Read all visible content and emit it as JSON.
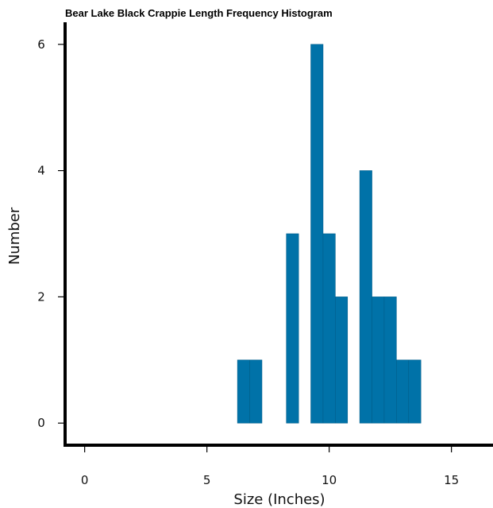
{
  "chart_data": {
    "type": "bar",
    "title": "Bear Lake Black Crappie Length Frequency Histogram",
    "xlabel": "Size (Inches)",
    "ylabel": "Number",
    "xlim": [
      -0.8,
      16.7
    ],
    "ylim": [
      -0.35,
      6.35
    ],
    "x_ticks": [
      0,
      5,
      10,
      15
    ],
    "y_ticks": [
      0,
      2,
      4,
      6
    ],
    "bar_color": "#0072a8",
    "bin_width": 0.5,
    "bars": [
      {
        "x_start": 6.25,
        "x_end": 6.75,
        "count": 1
      },
      {
        "x_start": 6.75,
        "x_end": 7.25,
        "count": 1
      },
      {
        "x_start": 8.25,
        "x_end": 8.75,
        "count": 3
      },
      {
        "x_start": 9.25,
        "x_end": 9.75,
        "count": 6
      },
      {
        "x_start": 9.75,
        "x_end": 10.25,
        "count": 3
      },
      {
        "x_start": 10.25,
        "x_end": 10.75,
        "count": 2
      },
      {
        "x_start": 11.25,
        "x_end": 11.75,
        "count": 4
      },
      {
        "x_start": 11.75,
        "x_end": 12.25,
        "count": 2
      },
      {
        "x_start": 12.25,
        "x_end": 12.75,
        "count": 2
      },
      {
        "x_start": 12.75,
        "x_end": 13.25,
        "count": 1
      },
      {
        "x_start": 13.25,
        "x_end": 13.75,
        "count": 1
      }
    ],
    "grid": false,
    "legend": "none"
  }
}
